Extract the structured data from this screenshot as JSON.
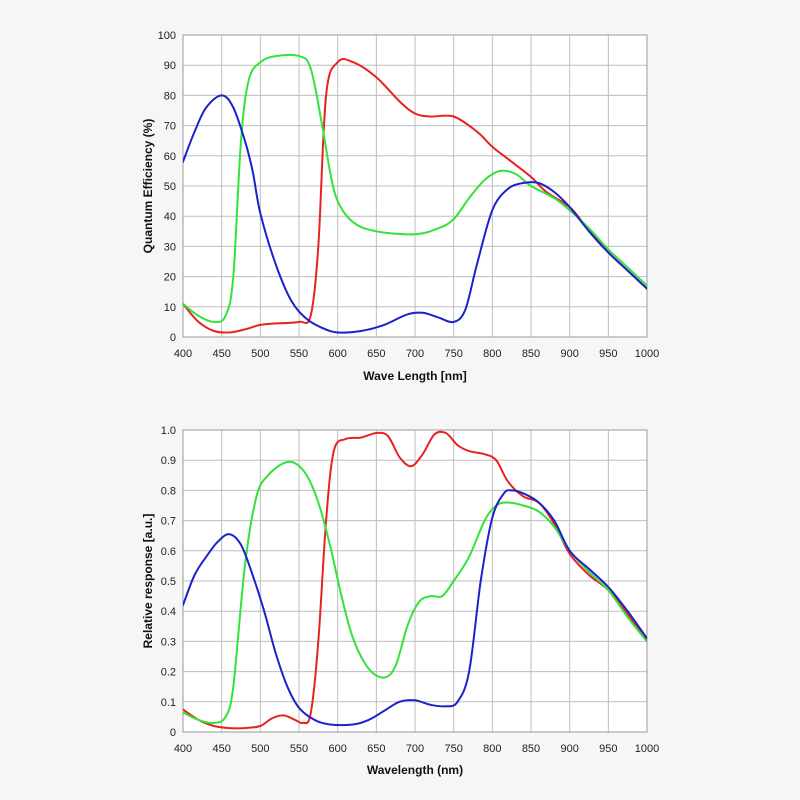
{
  "colors": {
    "red": "#e8231f",
    "green": "#33e33c",
    "blue": "#1a22c9",
    "background": "#f6f6f6",
    "plot_background": "#ffffff"
  },
  "chart_data": [
    {
      "type": "line",
      "xlabel": "Wave Length [nm]",
      "ylabel": "Quantum Efficiency (%)",
      "xlim": [
        400,
        1000
      ],
      "ylim": [
        0,
        100
      ],
      "xticks": [
        400,
        450,
        500,
        550,
        600,
        650,
        700,
        750,
        800,
        850,
        900,
        950,
        1000
      ],
      "yticks": [
        0,
        10,
        20,
        30,
        40,
        50,
        60,
        70,
        80,
        90,
        100
      ],
      "grid": true,
      "series": [
        {
          "color": "red",
          "points": [
            [
              400,
              11
            ],
            [
              420,
              5
            ],
            [
              440,
              2
            ],
            [
              460,
              1.5
            ],
            [
              480,
              2.5
            ],
            [
              500,
              4
            ],
            [
              520,
              4.5
            ],
            [
              550,
              5
            ],
            [
              565,
              7
            ],
            [
              575,
              30
            ],
            [
              585,
              80
            ],
            [
              600,
              91
            ],
            [
              620,
              91
            ],
            [
              650,
              86
            ],
            [
              680,
              78
            ],
            [
              700,
              74
            ],
            [
              720,
              73
            ],
            [
              750,
              73
            ],
            [
              780,
              68
            ],
            [
              800,
              63
            ],
            [
              820,
              59
            ],
            [
              850,
              53
            ],
            [
              870,
              48
            ],
            [
              900,
              43
            ],
            [
              920,
              37
            ],
            [
              950,
              28
            ],
            [
              975,
              22
            ],
            [
              1000,
              16
            ]
          ]
        },
        {
          "color": "green",
          "points": [
            [
              400,
              11
            ],
            [
              420,
              7
            ],
            [
              440,
              5
            ],
            [
              455,
              7
            ],
            [
              465,
              20
            ],
            [
              475,
              65
            ],
            [
              485,
              85
            ],
            [
              500,
              91
            ],
            [
              520,
              93
            ],
            [
              550,
              93
            ],
            [
              565,
              89
            ],
            [
              580,
              70
            ],
            [
              590,
              55
            ],
            [
              600,
              45
            ],
            [
              620,
              38
            ],
            [
              650,
              35
            ],
            [
              700,
              34
            ],
            [
              730,
              36
            ],
            [
              750,
              39
            ],
            [
              770,
              46
            ],
            [
              790,
              52
            ],
            [
              810,
              55
            ],
            [
              830,
              54
            ],
            [
              850,
              50
            ],
            [
              880,
              46
            ],
            [
              900,
              42
            ],
            [
              925,
              36
            ],
            [
              950,
              29
            ],
            [
              975,
              23
            ],
            [
              1000,
              17
            ]
          ]
        },
        {
          "color": "blue",
          "points": [
            [
              400,
              58
            ],
            [
              415,
              68
            ],
            [
              430,
              76
            ],
            [
              450,
              80
            ],
            [
              465,
              76
            ],
            [
              480,
              65
            ],
            [
              490,
              55
            ],
            [
              500,
              41
            ],
            [
              520,
              24
            ],
            [
              540,
              12
            ],
            [
              560,
              6
            ],
            [
              580,
              3
            ],
            [
              600,
              1.5
            ],
            [
              630,
              2
            ],
            [
              660,
              4
            ],
            [
              690,
              7.5
            ],
            [
              710,
              8
            ],
            [
              730,
              6.5
            ],
            [
              750,
              5
            ],
            [
              765,
              9
            ],
            [
              780,
              24
            ],
            [
              800,
              42
            ],
            [
              820,
              49
            ],
            [
              840,
              51
            ],
            [
              860,
              51
            ],
            [
              880,
              48
            ],
            [
              900,
              43
            ],
            [
              925,
              35
            ],
            [
              950,
              28
            ],
            [
              975,
              22
            ],
            [
              1000,
              16
            ]
          ]
        }
      ]
    },
    {
      "type": "line",
      "xlabel": "Wavelength (nm)",
      "ylabel": "Relative response [a.u.]",
      "xlim": [
        400,
        1000
      ],
      "ylim": [
        0,
        1.0
      ],
      "xticks": [
        400,
        450,
        500,
        550,
        600,
        650,
        700,
        750,
        800,
        850,
        900,
        950,
        1000
      ],
      "yticks": [
        "0",
        "0.1",
        "0.2",
        "0.3",
        "0.4",
        "0.5",
        "0.6",
        "0.7",
        "0.8",
        "0.9",
        "1.0"
      ],
      "grid": true,
      "series": [
        {
          "color": "red",
          "points": [
            [
              400,
              0.075
            ],
            [
              420,
              0.04
            ],
            [
              440,
              0.02
            ],
            [
              460,
              0.013
            ],
            [
              480,
              0.013
            ],
            [
              500,
              0.02
            ],
            [
              515,
              0.045
            ],
            [
              530,
              0.055
            ],
            [
              545,
              0.04
            ],
            [
              555,
              0.03
            ],
            [
              565,
              0.06
            ],
            [
              575,
              0.3
            ],
            [
              585,
              0.7
            ],
            [
              595,
              0.93
            ],
            [
              610,
              0.97
            ],
            [
              630,
              0.975
            ],
            [
              650,
              0.99
            ],
            [
              665,
              0.98
            ],
            [
              680,
              0.91
            ],
            [
              695,
              0.88
            ],
            [
              710,
              0.92
            ],
            [
              725,
              0.985
            ],
            [
              740,
              0.99
            ],
            [
              755,
              0.95
            ],
            [
              770,
              0.93
            ],
            [
              790,
              0.92
            ],
            [
              805,
              0.9
            ],
            [
              820,
              0.83
            ],
            [
              840,
              0.78
            ],
            [
              860,
              0.76
            ],
            [
              880,
              0.69
            ],
            [
              900,
              0.59
            ],
            [
              925,
              0.52
            ],
            [
              950,
              0.47
            ],
            [
              975,
              0.39
            ],
            [
              1000,
              0.3
            ]
          ]
        },
        {
          "color": "green",
          "points": [
            [
              400,
              0.065
            ],
            [
              420,
              0.04
            ],
            [
              440,
              0.03
            ],
            [
              455,
              0.05
            ],
            [
              465,
              0.15
            ],
            [
              480,
              0.55
            ],
            [
              495,
              0.78
            ],
            [
              510,
              0.85
            ],
            [
              530,
              0.89
            ],
            [
              545,
              0.89
            ],
            [
              560,
              0.85
            ],
            [
              575,
              0.76
            ],
            [
              590,
              0.62
            ],
            [
              605,
              0.45
            ],
            [
              620,
              0.31
            ],
            [
              640,
              0.21
            ],
            [
              660,
              0.18
            ],
            [
              675,
              0.22
            ],
            [
              690,
              0.35
            ],
            [
              705,
              0.43
            ],
            [
              720,
              0.45
            ],
            [
              735,
              0.45
            ],
            [
              750,
              0.5
            ],
            [
              770,
              0.58
            ],
            [
              790,
              0.7
            ],
            [
              805,
              0.75
            ],
            [
              820,
              0.76
            ],
            [
              840,
              0.75
            ],
            [
              860,
              0.73
            ],
            [
              880,
              0.68
            ],
            [
              900,
              0.6
            ],
            [
              925,
              0.53
            ],
            [
              950,
              0.47
            ],
            [
              975,
              0.38
            ],
            [
              1000,
              0.3
            ]
          ]
        },
        {
          "color": "blue",
          "points": [
            [
              400,
              0.42
            ],
            [
              415,
              0.52
            ],
            [
              430,
              0.58
            ],
            [
              445,
              0.63
            ],
            [
              460,
              0.655
            ],
            [
              475,
              0.62
            ],
            [
              490,
              0.52
            ],
            [
              505,
              0.4
            ],
            [
              520,
              0.26
            ],
            [
              535,
              0.15
            ],
            [
              550,
              0.08
            ],
            [
              570,
              0.04
            ],
            [
              590,
              0.025
            ],
            [
              620,
              0.025
            ],
            [
              640,
              0.04
            ],
            [
              660,
              0.07
            ],
            [
              680,
              0.1
            ],
            [
              700,
              0.105
            ],
            [
              720,
              0.09
            ],
            [
              740,
              0.085
            ],
            [
              755,
              0.1
            ],
            [
              770,
              0.2
            ],
            [
              785,
              0.5
            ],
            [
              800,
              0.71
            ],
            [
              815,
              0.79
            ],
            [
              825,
              0.8
            ],
            [
              840,
              0.79
            ],
            [
              860,
              0.76
            ],
            [
              880,
              0.7
            ],
            [
              900,
              0.6
            ],
            [
              925,
              0.54
            ],
            [
              950,
              0.48
            ],
            [
              975,
              0.4
            ],
            [
              1000,
              0.31
            ]
          ]
        }
      ]
    }
  ]
}
